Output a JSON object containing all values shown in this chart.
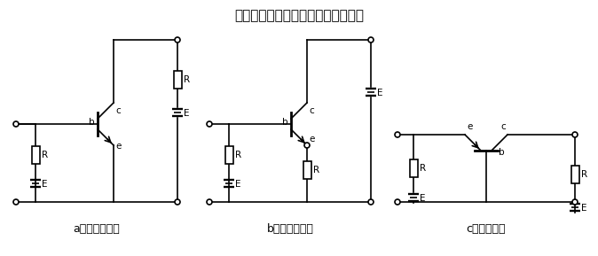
{
  "title": "三极管在放大电路中的三种基本接法",
  "title_fontsize": 11,
  "caption_a": "a共发射极接法",
  "caption_b": "b共集电极接法",
  "caption_c": "c共基极接法",
  "bg_color": "#ffffff",
  "line_color": "#000000"
}
